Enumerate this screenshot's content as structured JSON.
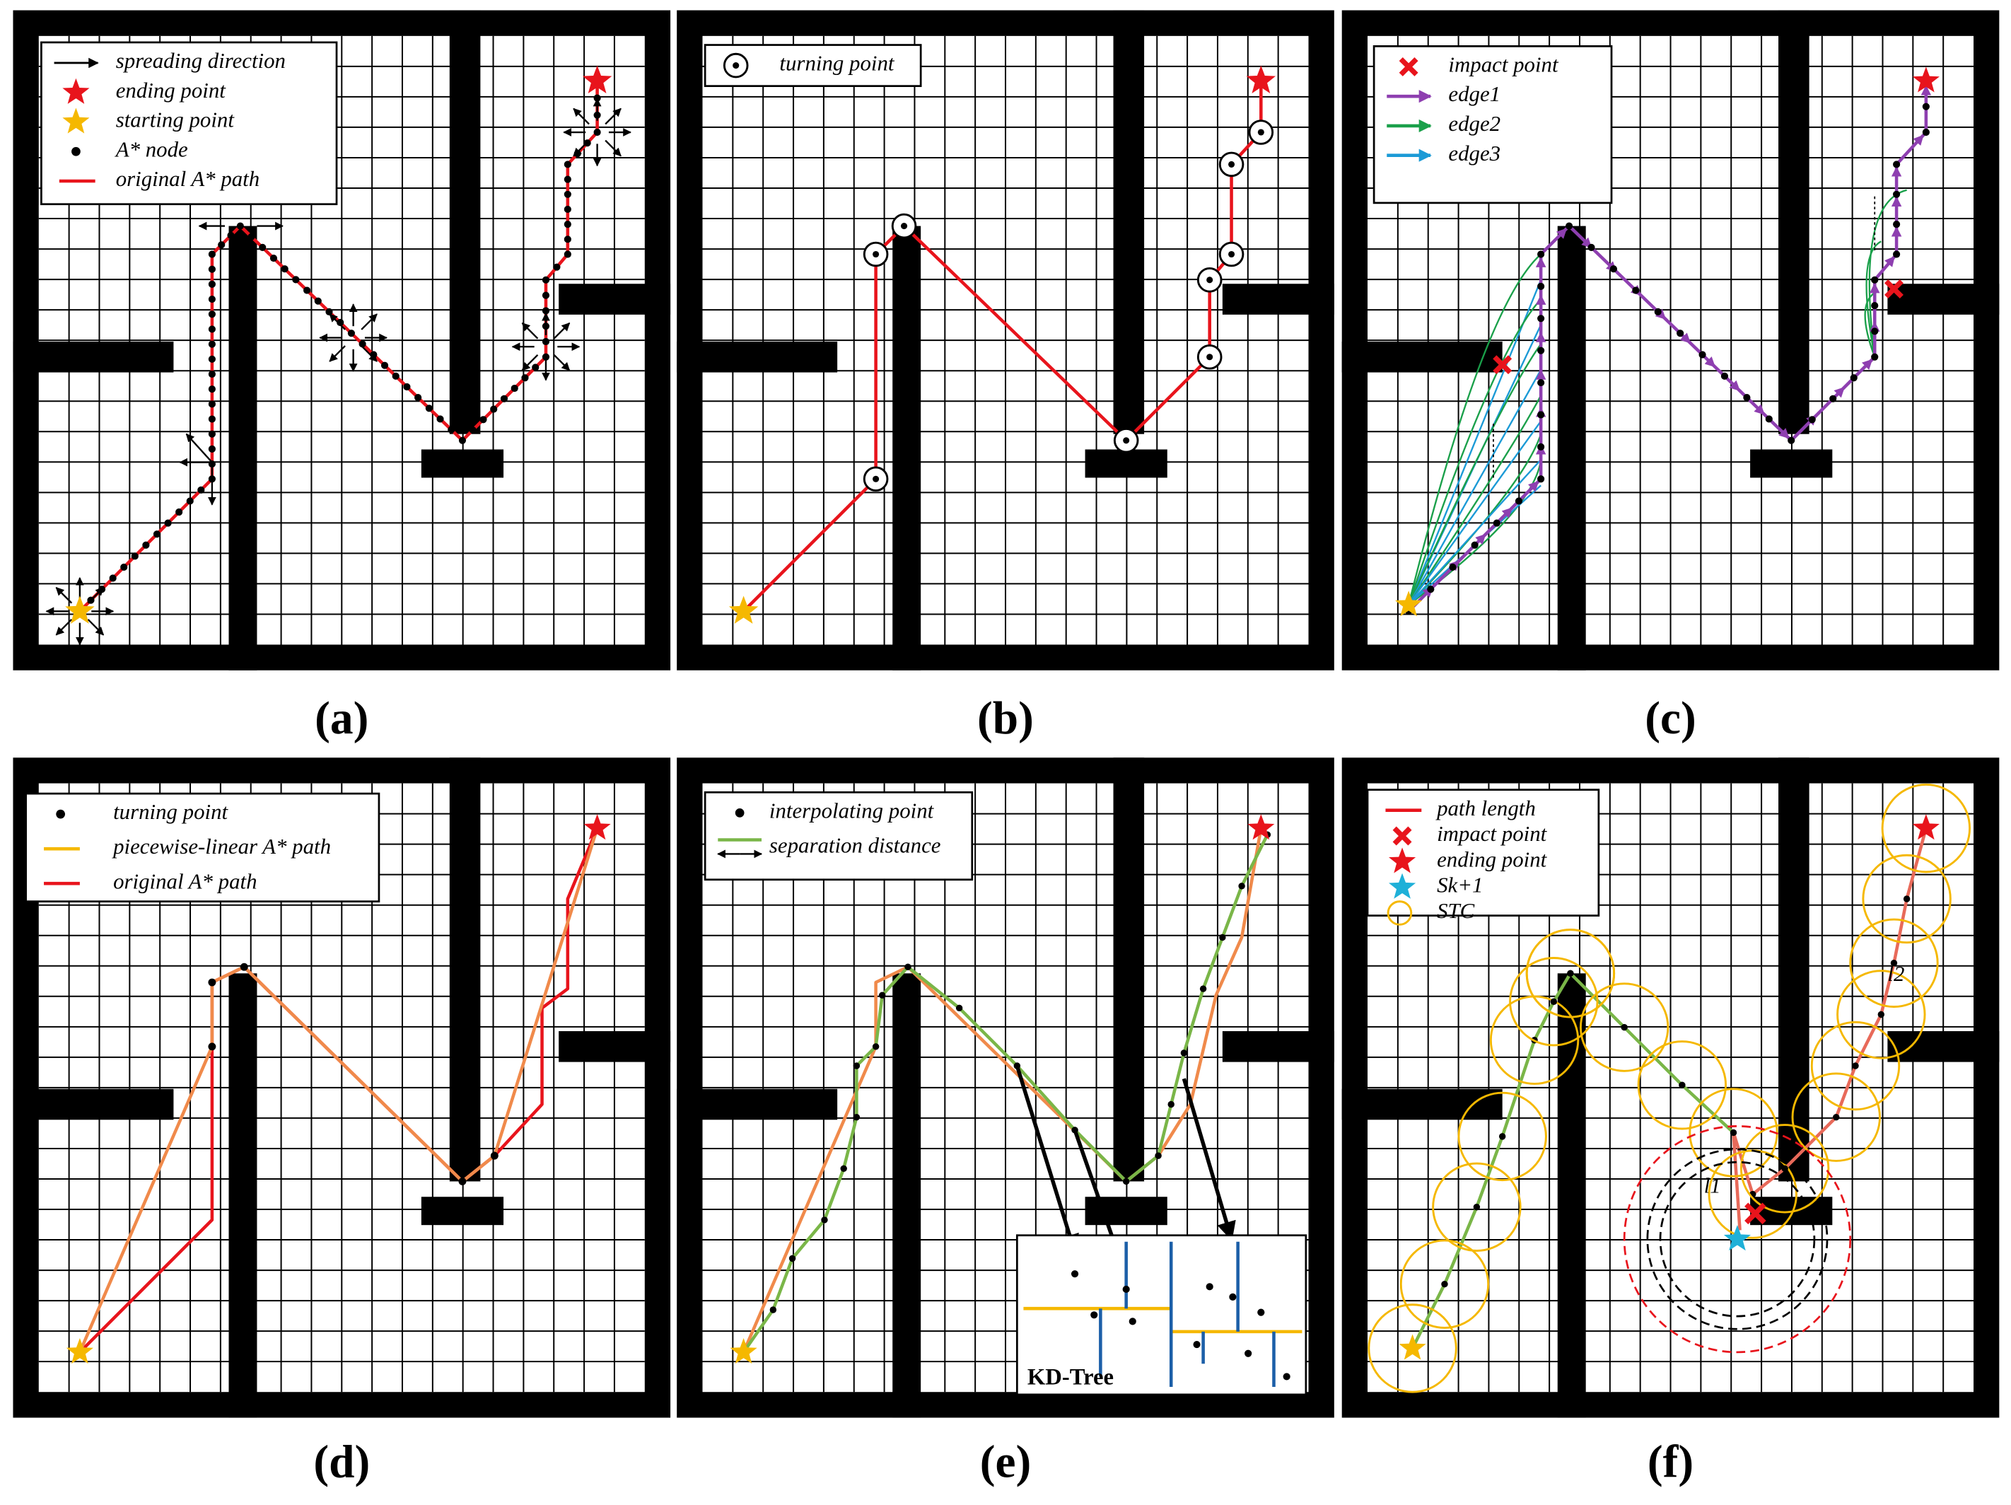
{
  "panels": [
    {
      "label": "(a)",
      "legend": [
        "spreading direction",
        "ending point",
        "starting point",
        "A* node",
        "original A* path"
      ]
    },
    {
      "label": "(b)",
      "legend": [
        "turning point"
      ]
    },
    {
      "label": "(c)",
      "legend": [
        "impact point",
        "edge1",
        "edge2",
        "edge3"
      ]
    },
    {
      "label": "(d)",
      "legend": [
        "turning point",
        "piecewise-linear A* path",
        "original A* path"
      ]
    },
    {
      "label": "(e)",
      "legend": [
        "interpolating point",
        "separation distance"
      ],
      "inset_title": "KD-Tree"
    },
    {
      "label": "(f)",
      "legend": [
        "path length",
        "impact point",
        "ending point",
        "Sk+1",
        "STC"
      ],
      "annotations": [
        "l1",
        "l2"
      ]
    }
  ]
}
